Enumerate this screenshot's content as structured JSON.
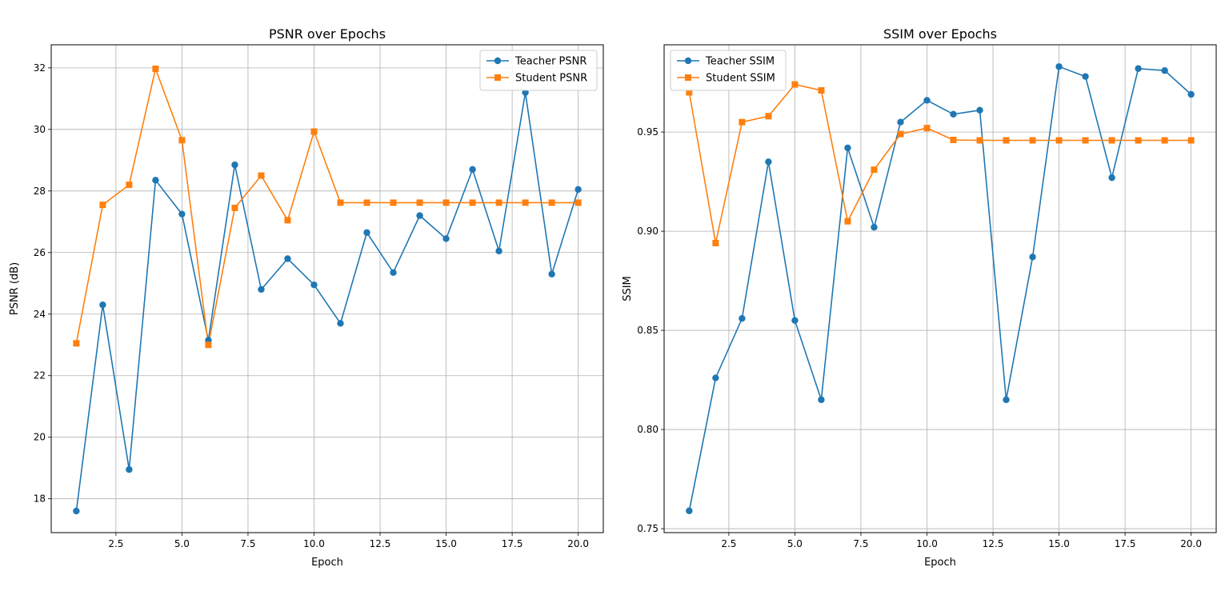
{
  "chart_data": [
    {
      "type": "line",
      "title": "PSNR over Epochs",
      "xlabel": "Epoch",
      "ylabel": "PSNR (dB)",
      "xlim": [
        0.05,
        20.95
      ],
      "ylim": [
        16.9,
        32.75
      ],
      "xticks": [
        2.5,
        5.0,
        7.5,
        10.0,
        12.5,
        15.0,
        17.5,
        20.0
      ],
      "xtick_labels": [
        "2.5",
        "5.0",
        "7.5",
        "10.0",
        "12.5",
        "15.0",
        "17.5",
        "20.0"
      ],
      "yticks": [
        18,
        20,
        22,
        24,
        26,
        28,
        30,
        32
      ],
      "ytick_labels": [
        "18",
        "20",
        "22",
        "24",
        "26",
        "28",
        "30",
        "32"
      ],
      "grid": true,
      "legend_position": "top-right",
      "x": [
        1,
        2,
        3,
        4,
        5,
        6,
        7,
        8,
        9,
        10,
        11,
        12,
        13,
        14,
        15,
        16,
        17,
        18,
        19,
        20
      ],
      "series": [
        {
          "name": "Teacher PSNR",
          "color": "#1f77b4",
          "marker": "circle",
          "values": [
            17.6,
            24.3,
            18.95,
            28.35,
            27.25,
            23.15,
            28.85,
            24.8,
            25.8,
            24.95,
            23.7,
            26.65,
            25.35,
            27.2,
            26.45,
            28.7,
            26.05,
            31.2,
            25.3,
            28.05
          ]
        },
        {
          "name": "Student PSNR",
          "color": "#ff7f0e",
          "marker": "square",
          "values": [
            23.05,
            27.55,
            28.2,
            31.97,
            29.65,
            23.0,
            27.45,
            28.5,
            27.05,
            29.93,
            27.62,
            27.62,
            27.62,
            27.62,
            27.62,
            27.62,
            27.62,
            27.62,
            27.62,
            27.62
          ]
        }
      ]
    },
    {
      "type": "line",
      "title": "SSIM over Epochs",
      "xlabel": "Epoch",
      "ylabel": "SSIM",
      "xlim": [
        0.05,
        20.95
      ],
      "ylim": [
        0.748,
        0.994
      ],
      "xticks": [
        2.5,
        5.0,
        7.5,
        10.0,
        12.5,
        15.0,
        17.5,
        20.0
      ],
      "xtick_labels": [
        "2.5",
        "5.0",
        "7.5",
        "10.0",
        "12.5",
        "15.0",
        "17.5",
        "20.0"
      ],
      "yticks": [
        0.75,
        0.8,
        0.85,
        0.9,
        0.95
      ],
      "ytick_labels": [
        "0.75",
        "0.80",
        "0.85",
        "0.90",
        "0.95"
      ],
      "grid": true,
      "legend_position": "top-left",
      "x": [
        1,
        2,
        3,
        4,
        5,
        6,
        7,
        8,
        9,
        10,
        11,
        12,
        13,
        14,
        15,
        16,
        17,
        18,
        19,
        20
      ],
      "series": [
        {
          "name": "Teacher SSIM",
          "color": "#1f77b4",
          "marker": "circle",
          "values": [
            0.759,
            0.826,
            0.856,
            0.935,
            0.855,
            0.815,
            0.942,
            0.902,
            0.955,
            0.966,
            0.959,
            0.961,
            0.815,
            0.887,
            0.983,
            0.978,
            0.927,
            0.982,
            0.981,
            0.969
          ]
        },
        {
          "name": "Student SSIM",
          "color": "#ff7f0e",
          "marker": "square",
          "values": [
            0.97,
            0.894,
            0.955,
            0.958,
            0.974,
            0.971,
            0.905,
            0.931,
            0.949,
            0.952,
            0.946,
            0.9458,
            0.9458,
            0.9458,
            0.9458,
            0.9458,
            0.9458,
            0.9458,
            0.9458,
            0.9458
          ]
        }
      ]
    }
  ]
}
